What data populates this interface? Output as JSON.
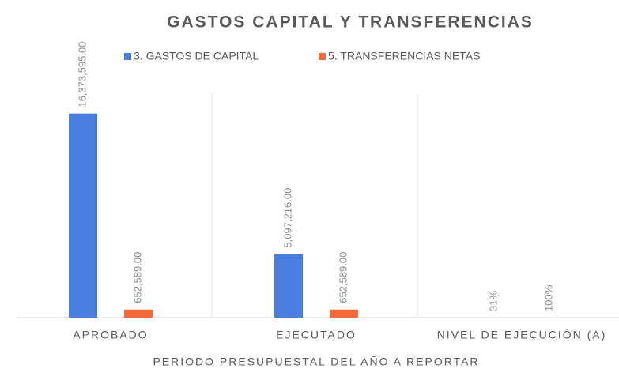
{
  "chart_data": {
    "type": "bar",
    "title": "GASTOS CAPITAL Y TRANSFERENCIAS",
    "x_label": "PERIODO PRESUPUESTAL DEL AÑO A REPORTAR",
    "categories": [
      "APROBADO",
      "EJECUTADO",
      "NIVEL DE EJECUCIÓN (A)"
    ],
    "series": [
      {
        "name": "3. GASTOS DE CAPITAL",
        "color": "#4a7fe0",
        "values": [
          16373595,
          5097216,
          31
        ],
        "value_labels": [
          "16,373,595.00",
          "5,097,216.00",
          "31%"
        ]
      },
      {
        "name": "5. TRANSFERENCIAS NETAS",
        "color": "#f26b3a",
        "values": [
          652589,
          652589,
          100
        ],
        "value_labels": [
          "652,589.00",
          "652,589.00",
          "100%"
        ]
      }
    ],
    "ylim": [
      0,
      18000000
    ]
  }
}
